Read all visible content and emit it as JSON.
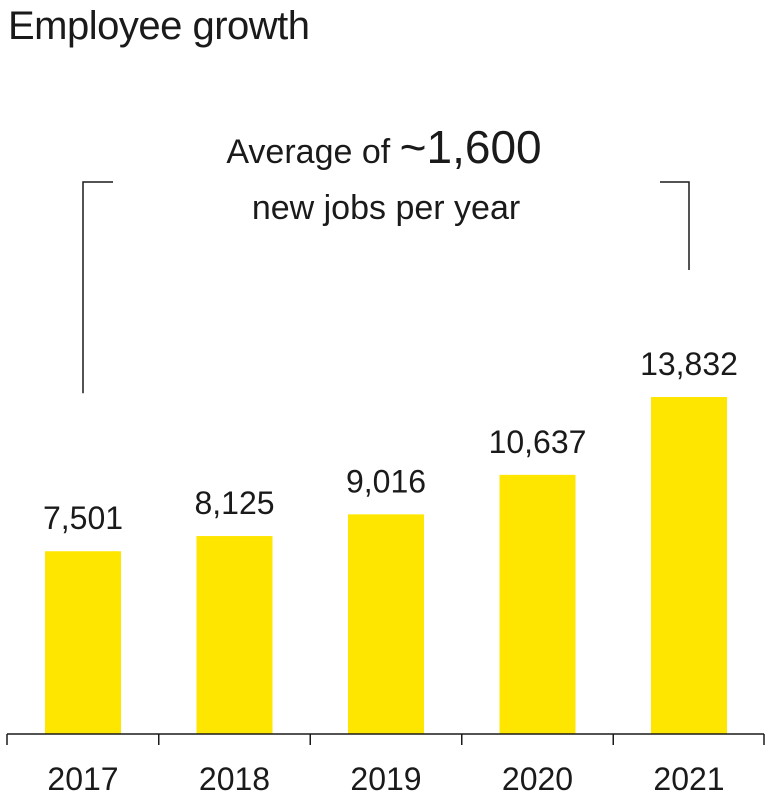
{
  "colors": {
    "bar": "#FFE600",
    "ink": "#1a1a1a"
  },
  "chart_data": {
    "type": "bar",
    "title": "Employee growth",
    "categories": [
      "2017",
      "2018",
      "2019",
      "2020",
      "2021"
    ],
    "values": [
      7501,
      8125,
      9016,
      10637,
      13832
    ],
    "value_labels": [
      "7,501",
      "8,125",
      "9,016",
      "10,637",
      "13,832"
    ],
    "annotation": {
      "prefix": "Average of ",
      "highlight": "~1,600",
      "line2": "new jobs per year"
    },
    "xlabel": "",
    "ylabel": "",
    "ylim": [
      0,
      16000
    ],
    "grid": false,
    "legend": "none"
  }
}
